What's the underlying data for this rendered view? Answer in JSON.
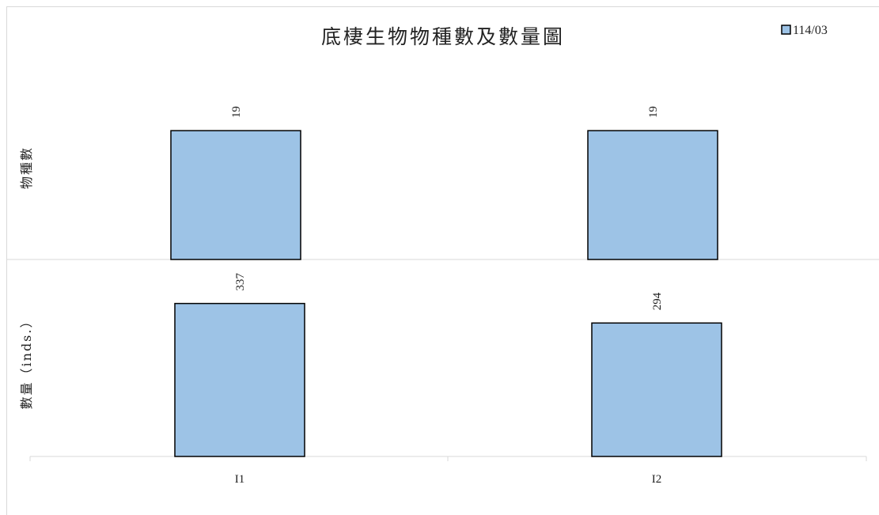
{
  "chart_data": {
    "type": "bar",
    "title": "底棲生物物種數及數量圖",
    "categories": [
      "I1",
      "I2"
    ],
    "legend": {
      "entries": [
        "114/03"
      ],
      "placement": "top-right"
    },
    "colors": {
      "bar_fill": "#9dc3e6",
      "bar_stroke": "#000000",
      "divider": "#d9d9d9"
    },
    "panels": [
      {
        "ylabel": "物種數",
        "series": [
          {
            "name": "114/03",
            "values": [
              19,
              19
            ]
          }
        ],
        "ylim": [
          0,
          28
        ]
      },
      {
        "ylabel": "數量（inds.）",
        "series": [
          {
            "name": "114/03",
            "values": [
              337,
              294
            ]
          }
        ],
        "ylim": [
          0,
          420
        ]
      }
    ],
    "grid": false
  }
}
